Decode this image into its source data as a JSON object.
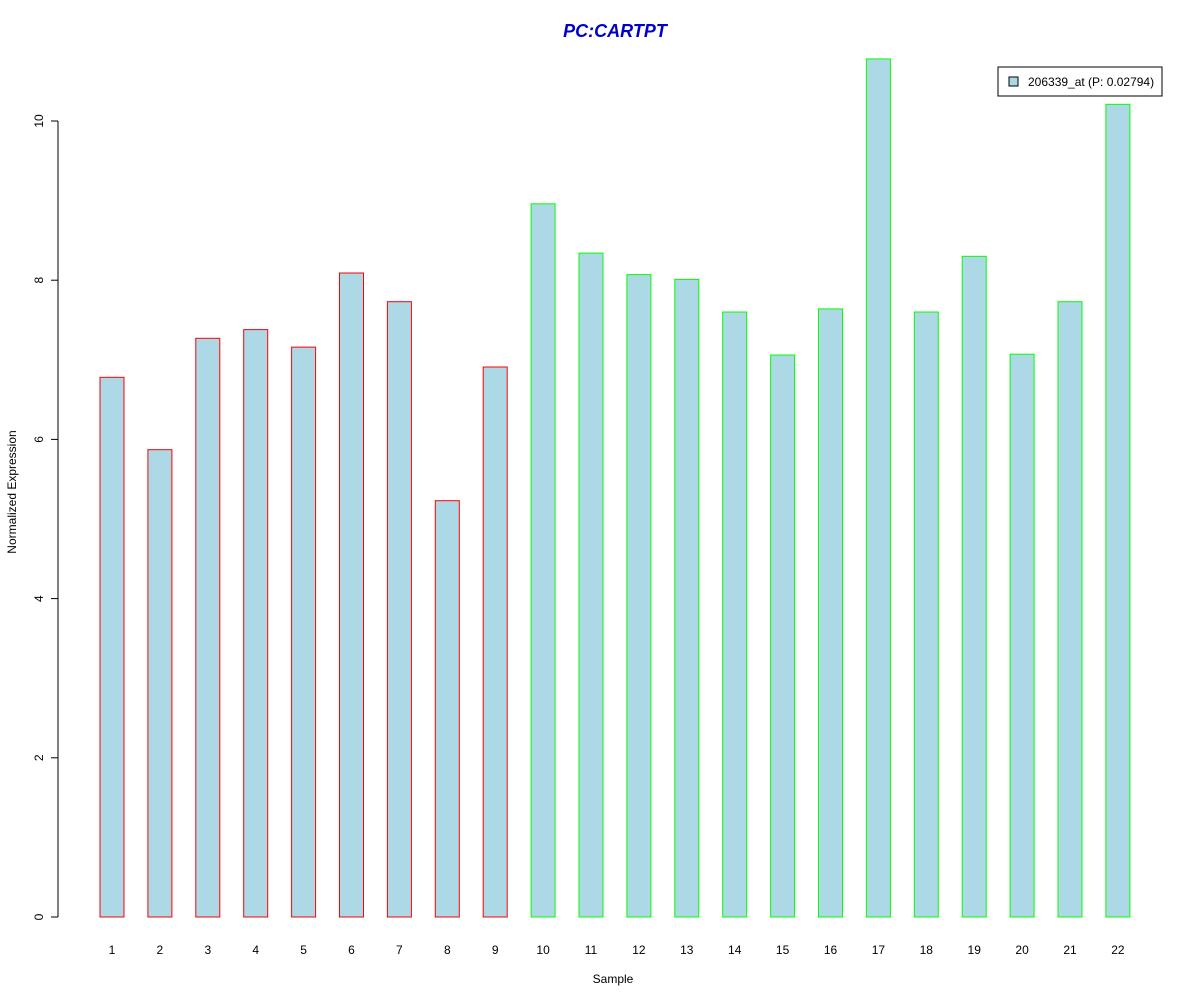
{
  "chart_data": {
    "type": "bar",
    "title": "PC:CARTPT",
    "title_color": "#0000CC",
    "xlabel": "Sample",
    "ylabel": "Normalized Expression",
    "ylim": [
      0,
      10
    ],
    "yticks": [
      0,
      2,
      4,
      6,
      8,
      10
    ],
    "categories": [
      "1",
      "2",
      "3",
      "4",
      "5",
      "6",
      "7",
      "8",
      "9",
      "10",
      "11",
      "12",
      "13",
      "14",
      "15",
      "16",
      "17",
      "18",
      "19",
      "20",
      "21",
      "22"
    ],
    "series": [
      {
        "name": "206339_at (P: 0.02794)",
        "fill": "#ADD8E6",
        "values": [
          6.78,
          5.87,
          7.27,
          7.38,
          7.16,
          8.09,
          7.73,
          5.23,
          6.91,
          8.96,
          8.34,
          8.07,
          8.01,
          7.6,
          7.06,
          7.64,
          10.78,
          7.6,
          8.3,
          7.07,
          7.73,
          10.21
        ]
      }
    ],
    "bar_border_colors": [
      "#FF0000",
      "#FF0000",
      "#FF0000",
      "#FF0000",
      "#FF0000",
      "#FF0000",
      "#FF0000",
      "#FF0000",
      "#FF0000",
      "#00FF00",
      "#00FF00",
      "#00FF00",
      "#00FF00",
      "#00FF00",
      "#00FF00",
      "#00FF00",
      "#00FF00",
      "#00FF00",
      "#00FF00",
      "#00FF00",
      "#00FF00",
      "#00FF00"
    ],
    "legend": {
      "label": "206339_at (P: 0.02794)",
      "position": "top-right",
      "swatch_color": "#ADD8E6"
    },
    "grid": false
  }
}
